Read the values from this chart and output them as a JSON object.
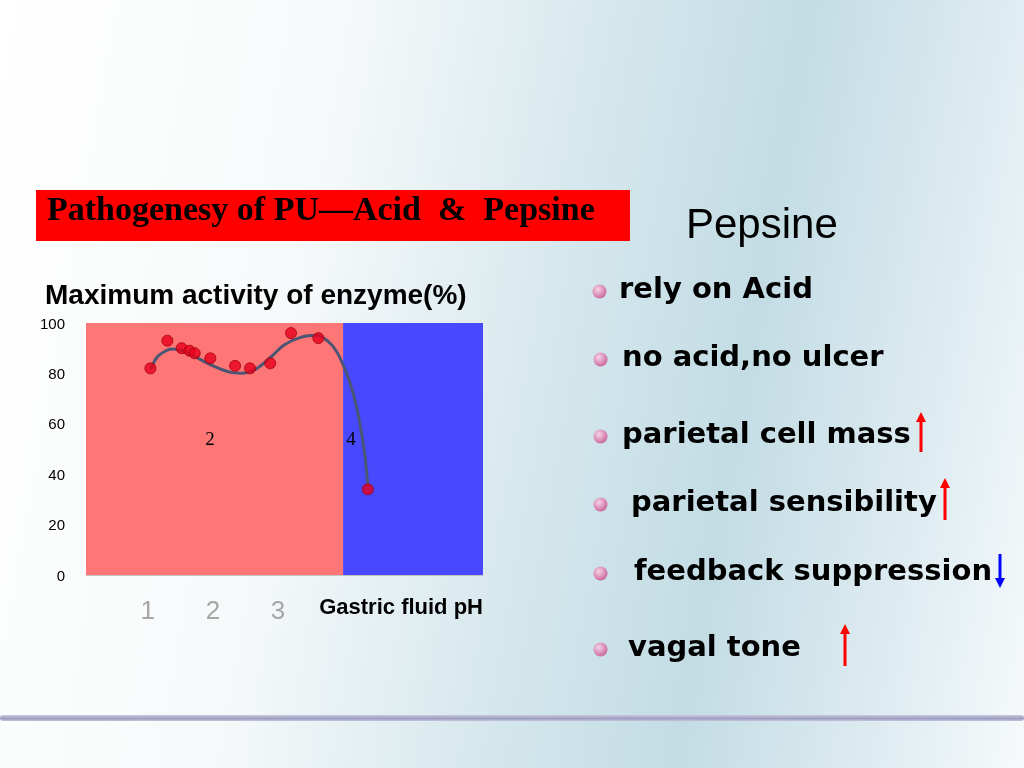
{
  "chart_data": {
    "type": "scatter",
    "title": "Pathogenesy of PU—Acid  &  Pepsine",
    "xlabel": "Gastric fluid pH",
    "ylabel": "Maximum activity of enzyme(%)",
    "series": [
      {
        "color": "#e8001c",
        "marker": "circle",
        "x": [
          1.04,
          1.3,
          1.52,
          1.64,
          1.72,
          1.96,
          2.34,
          2.57,
          2.88,
          3.2,
          3.62,
          4.38
        ],
        "values": [
          82,
          93,
          90,
          89,
          88,
          86,
          83,
          82,
          84,
          96,
          94,
          34
        ]
      },
      {
        "type": "line",
        "color": "#4b5574",
        "marker": "none",
        "line_style": "solid",
        "x": [
          1.05,
          1.15,
          1.26,
          1.36,
          1.51,
          1.67,
          1.97,
          2.28,
          2.43,
          2.64,
          2.9,
          3.1,
          3.36,
          3.59,
          3.77,
          3.9,
          4.0,
          4.1,
          4.2,
          4.28,
          4.34,
          4.38
        ],
        "values": [
          82.1,
          86.7,
          88.7,
          89.7,
          89.1,
          87.4,
          83.4,
          80.4,
          80.1,
          81.4,
          86.7,
          91.4,
          94.4,
          95.1,
          92.7,
          88.7,
          83.4,
          76.8,
          67.5,
          56.9,
          46.4,
          35.8
        ]
      }
    ],
    "xlim": [
      0.05,
      6.15
    ],
    "xticks": [
      1,
      2,
      3
    ],
    "ylim": [
      0,
      100
    ],
    "yticks": [
      0,
      20,
      40,
      60,
      80,
      100
    ],
    "bands": [
      {
        "axis": "x",
        "from": 0.05,
        "to": 4,
        "color": "#ff7676"
      },
      {
        "axis": "x",
        "from": 4,
        "to": 6.15,
        "color": "#4848ff"
      }
    ],
    "annotations": [
      "2",
      "4",
      "Pepsine",
      "rely on Acid",
      "no acid,no ulcer",
      "parietal cell mass",
      "parietal sensibility",
      "feedback suppression",
      "vagal tone"
    ]
  }
}
